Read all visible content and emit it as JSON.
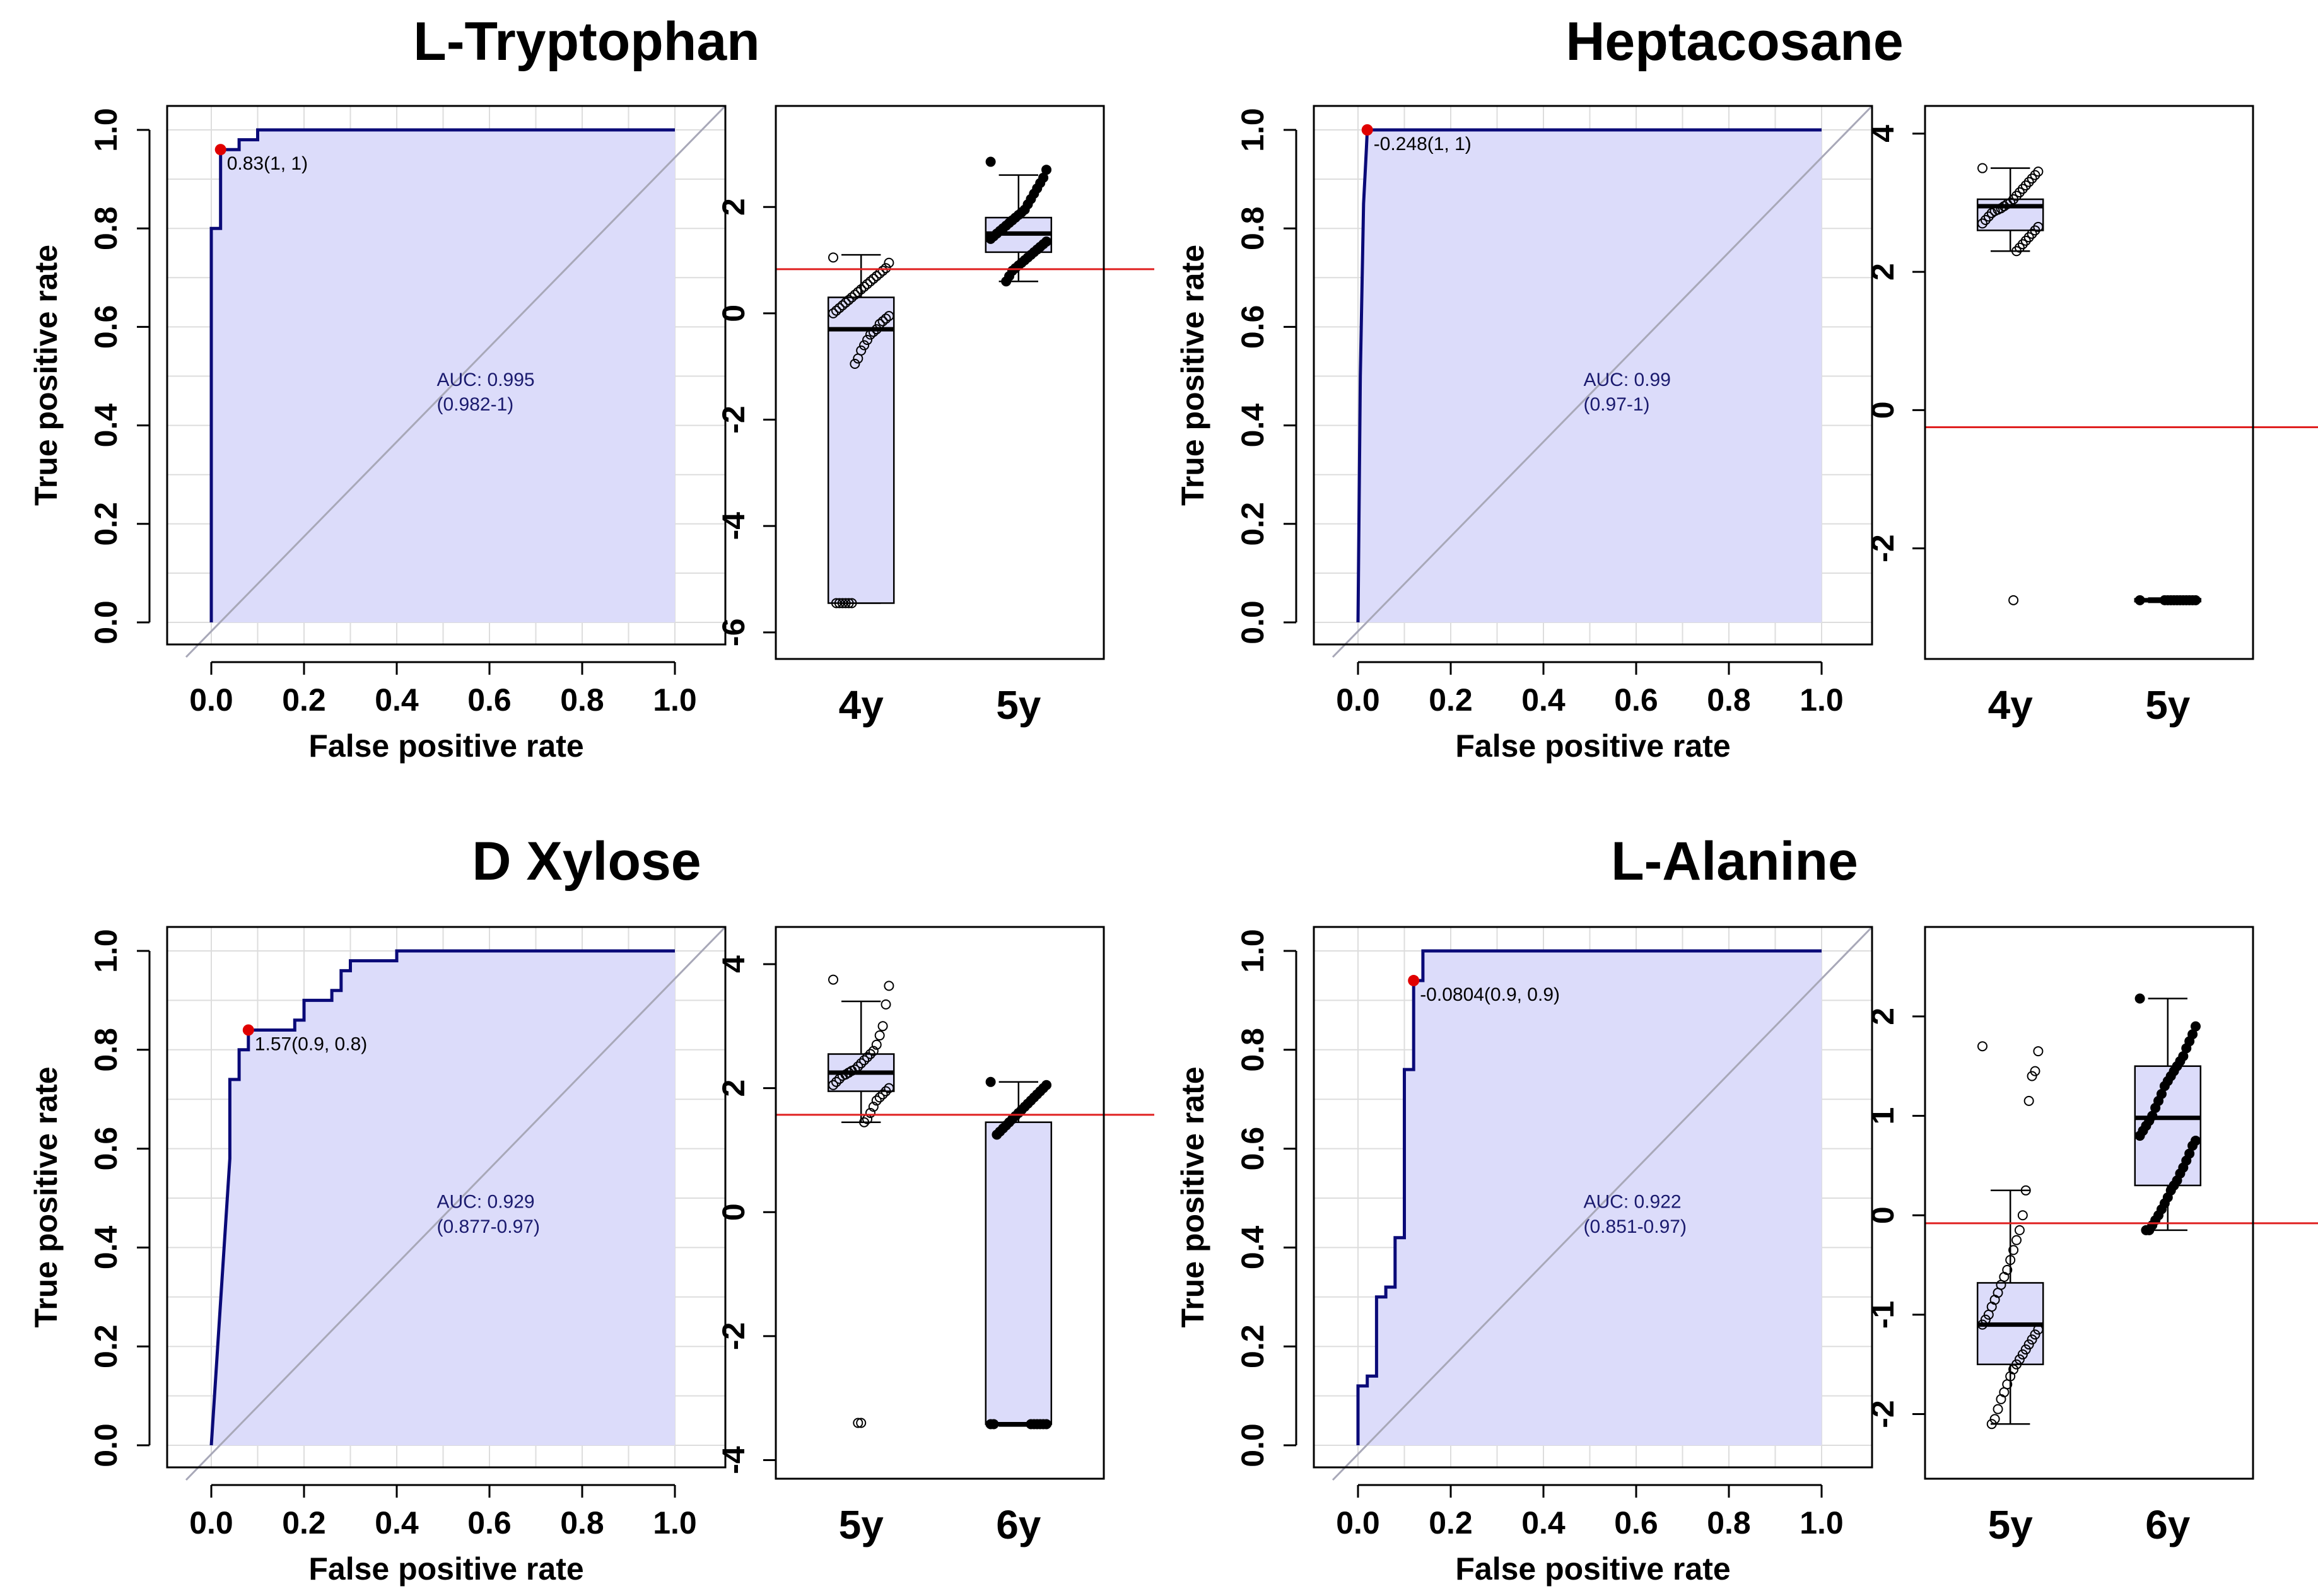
{
  "colors": {
    "roc_fill": "#dcdcfa",
    "roc_line": "#0a0a78",
    "diag": "#a8a8b8",
    "grid": "#dddddd",
    "cutoff": "#e02020",
    "box_fill": "#dcdcfa",
    "point_red": "#e00000"
  },
  "chart_data": [
    {
      "title": "L-Tryptophan",
      "roc": {
        "type": "line",
        "xlabel": "False positive rate",
        "ylabel": "True positive rate",
        "xlim": [
          0,
          1
        ],
        "ylim": [
          0,
          1
        ],
        "xticks": [
          "0.0",
          "0.2",
          "0.4",
          "0.6",
          "0.8",
          "1.0"
        ],
        "yticks": [
          "0.0",
          "0.2",
          "0.4",
          "0.6",
          "0.8",
          "1.0"
        ],
        "x": [
          0,
          0,
          0.02,
          0.02,
          0.06,
          0.06,
          0.1,
          0.1,
          1.0
        ],
        "y": [
          0,
          0.8,
          0.8,
          0.96,
          0.96,
          0.98,
          0.98,
          1.0,
          1.0
        ],
        "best_point": [
          0.02,
          0.96
        ],
        "best_label": "0.83(1, 1)",
        "auc_line1": "AUC: 0.995",
        "auc_line2": "(0.982-1)"
      },
      "box": {
        "type": "box",
        "ylim": [
          -6.5,
          3.9
        ],
        "yticks": [
          -6,
          -4,
          -2,
          0,
          2
        ],
        "categories": [
          "4y",
          "5y"
        ],
        "cutoff": 0.83,
        "groups": [
          {
            "name": "4y",
            "q1": -5.45,
            "median": -0.3,
            "q3": 0.3,
            "whisker_low": -5.45,
            "whisker_high": 1.1,
            "filled": false,
            "points": [
              1.05,
              0.95,
              0.85,
              0.8,
              0.75,
              0.7,
              0.65,
              0.6,
              0.55,
              0.5,
              0.45,
              0.4,
              0.35,
              0.3,
              0.25,
              0.2,
              0.15,
              0.1,
              0.05,
              0.0,
              -0.05,
              -0.1,
              -0.15,
              -0.2,
              -0.3,
              -0.35,
              -0.4,
              -0.5,
              -0.6,
              -0.7,
              -0.85,
              -0.95,
              -5.45,
              -5.45,
              -5.45,
              -5.45,
              -5.45,
              -5.45
            ]
          },
          {
            "name": "5y",
            "q1": 1.15,
            "median": 1.5,
            "q3": 1.8,
            "whisker_low": 0.6,
            "whisker_high": 2.6,
            "filled": true,
            "points": [
              2.85,
              2.7,
              2.55,
              2.45,
              2.35,
              2.25,
              2.15,
              2.05,
              1.95,
              1.9,
              1.85,
              1.8,
              1.75,
              1.7,
              1.65,
              1.6,
              1.55,
              1.5,
              1.45,
              1.4,
              1.35,
              1.3,
              1.25,
              1.2,
              1.15,
              1.1,
              1.05,
              1.0,
              0.95,
              0.9,
              0.85,
              0.8,
              0.7,
              0.6
            ]
          }
        ]
      }
    },
    {
      "title": "Heptacosane",
      "roc": {
        "type": "line",
        "xlabel": "False positive rate",
        "ylabel": "True positive rate",
        "xlim": [
          0,
          1
        ],
        "ylim": [
          0,
          1
        ],
        "xticks": [
          "0.0",
          "0.2",
          "0.4",
          "0.6",
          "0.8",
          "1.0"
        ],
        "yticks": [
          "0.0",
          "0.2",
          "0.4",
          "0.6",
          "0.8",
          "1.0"
        ],
        "x": [
          0,
          0.005,
          0.012,
          0.018,
          0.02,
          0.02,
          1.0
        ],
        "y": [
          0,
          0.5,
          0.85,
          0.96,
          1.0,
          1.0,
          1.0
        ],
        "best_point": [
          0.02,
          1.0
        ],
        "best_label": "-0.248(1, 1)",
        "auc_line1": "AUC: 0.99",
        "auc_line2": "(0.97-1)"
      },
      "box": {
        "type": "box",
        "ylim": [
          -3.6,
          4.4
        ],
        "yticks": [
          -2,
          0,
          2,
          4
        ],
        "categories": [
          "4y",
          "5y"
        ],
        "cutoff": -0.248,
        "groups": [
          {
            "name": "4y",
            "q1": 2.6,
            "median": 2.95,
            "q3": 3.05,
            "whisker_low": 2.3,
            "whisker_high": 3.5,
            "filled": false,
            "points": [
              3.5,
              3.45,
              3.4,
              3.35,
              3.3,
              3.25,
              3.2,
              3.15,
              3.1,
              3.05,
              3.0,
              2.98,
              2.95,
              2.92,
              2.9,
              2.88,
              2.85,
              2.8,
              2.75,
              2.7,
              2.65,
              2.6,
              2.55,
              2.5,
              2.45,
              2.4,
              2.35,
              2.3,
              -2.75
            ]
          },
          {
            "name": "5y",
            "q1": -2.77,
            "median": -2.75,
            "q3": -2.73,
            "whisker_low": -2.78,
            "whisker_high": -2.72,
            "filled": true,
            "points": [
              -2.75,
              -2.75,
              -2.75,
              -2.75,
              -2.75,
              -2.75,
              -2.75,
              -2.75,
              -2.75,
              -2.75,
              -2.75,
              -2.75
            ]
          }
        ]
      }
    },
    {
      "title": "D Xylose",
      "roc": {
        "type": "line",
        "xlabel": "False positive rate",
        "ylabel": "True positive rate",
        "xlim": [
          0,
          1
        ],
        "ylim": [
          0,
          1
        ],
        "xticks": [
          "0.0",
          "0.2",
          "0.4",
          "0.6",
          "0.8",
          "1.0"
        ],
        "yticks": [
          "0.0",
          "0.2",
          "0.4",
          "0.6",
          "0.8",
          "1.0"
        ],
        "x": [
          0,
          0.04,
          0.04,
          0.06,
          0.06,
          0.08,
          0.08,
          0.18,
          0.18,
          0.2,
          0.2,
          0.26,
          0.26,
          0.28,
          0.28,
          0.3,
          0.3,
          0.38,
          0.38,
          0.4,
          0.4,
          1.0
        ],
        "y": [
          0,
          0.58,
          0.74,
          0.74,
          0.8,
          0.8,
          0.84,
          0.84,
          0.86,
          0.86,
          0.9,
          0.9,
          0.92,
          0.92,
          0.96,
          0.96,
          0.98,
          0.98,
          0.98,
          0.98,
          1.0,
          1.0
        ],
        "best_point": [
          0.08,
          0.84
        ],
        "best_label": "1.57(0.9, 0.8)",
        "auc_line1": "AUC: 0.929",
        "auc_line2": "(0.877-0.97)"
      },
      "box": {
        "type": "box",
        "ylim": [
          -4.3,
          4.6
        ],
        "yticks": [
          -4,
          -2,
          0,
          2,
          4
        ],
        "categories": [
          "5y",
          "6y"
        ],
        "cutoff": 1.57,
        "groups": [
          {
            "name": "5y",
            "q1": 1.95,
            "median": 2.25,
            "q3": 2.55,
            "whisker_low": 1.45,
            "whisker_high": 3.4,
            "filled": false,
            "points": [
              3.75,
              3.65,
              3.35,
              3.0,
              2.85,
              2.7,
              2.6,
              2.55,
              2.5,
              2.45,
              2.4,
              2.35,
              2.3,
              2.28,
              2.25,
              2.22,
              2.2,
              2.15,
              2.1,
              2.05,
              2.0,
              1.95,
              1.9,
              1.85,
              1.8,
              1.7,
              1.6,
              1.5,
              1.45,
              -3.4,
              -3.4
            ]
          },
          {
            "name": "6y",
            "q1": -3.42,
            "median": -3.42,
            "q3": 1.45,
            "whisker_low": -3.45,
            "whisker_high": 2.1,
            "filled": true,
            "points": [
              2.1,
              2.05,
              2.0,
              1.95,
              1.9,
              1.85,
              1.8,
              1.75,
              1.7,
              1.65,
              1.6,
              1.55,
              1.5,
              1.45,
              1.4,
              1.35,
              1.3,
              1.25,
              -3.42,
              -3.42,
              -3.42,
              -3.42,
              -3.42,
              -3.42,
              -3.42,
              -3.42
            ]
          }
        ]
      }
    },
    {
      "title": "L-Alanine",
      "roc": {
        "type": "line",
        "xlabel": "False positive rate",
        "ylabel": "True positive rate",
        "xlim": [
          0,
          1
        ],
        "ylim": [
          0,
          1
        ],
        "xticks": [
          "0.0",
          "0.2",
          "0.4",
          "0.6",
          "0.8",
          "1.0"
        ],
        "yticks": [
          "0.0",
          "0.2",
          "0.4",
          "0.6",
          "0.8",
          "1.0"
        ],
        "x": [
          0,
          0,
          0.02,
          0.02,
          0.04,
          0.04,
          0.06,
          0.06,
          0.08,
          0.08,
          0.1,
          0.1,
          0.12,
          0.12,
          0.14,
          0.14,
          1.0
        ],
        "y": [
          0,
          0.12,
          0.12,
          0.14,
          0.14,
          0.3,
          0.3,
          0.32,
          0.32,
          0.42,
          0.42,
          0.76,
          0.76,
          0.94,
          0.94,
          1.0,
          1.0
        ],
        "best_point": [
          0.12,
          0.94
        ],
        "best_label": "-0.0804(0.9, 0.9)",
        "auc_line1": "AUC: 0.922",
        "auc_line2": "(0.851-0.97)"
      },
      "box": {
        "type": "box",
        "ylim": [
          -2.65,
          2.9
        ],
        "yticks": [
          -2,
          -1,
          0,
          1,
          2
        ],
        "categories": [
          "5y",
          "6y"
        ],
        "cutoff": -0.0804,
        "groups": [
          {
            "name": "5y",
            "q1": -1.5,
            "median": -1.1,
            "q3": -0.68,
            "whisker_low": -2.1,
            "whisker_high": 0.25,
            "filled": false,
            "points": [
              1.7,
              1.65,
              1.45,
              1.4,
              1.15,
              0.25,
              0.0,
              -0.15,
              -0.25,
              -0.35,
              -0.45,
              -0.55,
              -0.62,
              -0.7,
              -0.78,
              -0.85,
              -0.92,
              -1.0,
              -1.05,
              -1.1,
              -1.15,
              -1.2,
              -1.25,
              -1.3,
              -1.35,
              -1.4,
              -1.45,
              -1.5,
              -1.55,
              -1.62,
              -1.7,
              -1.78,
              -1.85,
              -1.95,
              -2.05,
              -2.1
            ]
          },
          {
            "name": "6y",
            "q1": 0.3,
            "median": 0.98,
            "q3": 1.5,
            "whisker_low": -0.15,
            "whisker_high": 2.18,
            "filled": true,
            "points": [
              2.18,
              1.9,
              1.82,
              1.75,
              1.68,
              1.6,
              1.55,
              1.5,
              1.45,
              1.4,
              1.35,
              1.3,
              1.22,
              1.15,
              1.08,
              1.0,
              0.95,
              0.9,
              0.85,
              0.8,
              0.75,
              0.7,
              0.62,
              0.55,
              0.48,
              0.42,
              0.35,
              0.3,
              0.25,
              0.18,
              0.12,
              0.06,
              0.0,
              -0.05,
              -0.1,
              -0.15,
              -0.15
            ]
          }
        ]
      }
    }
  ]
}
